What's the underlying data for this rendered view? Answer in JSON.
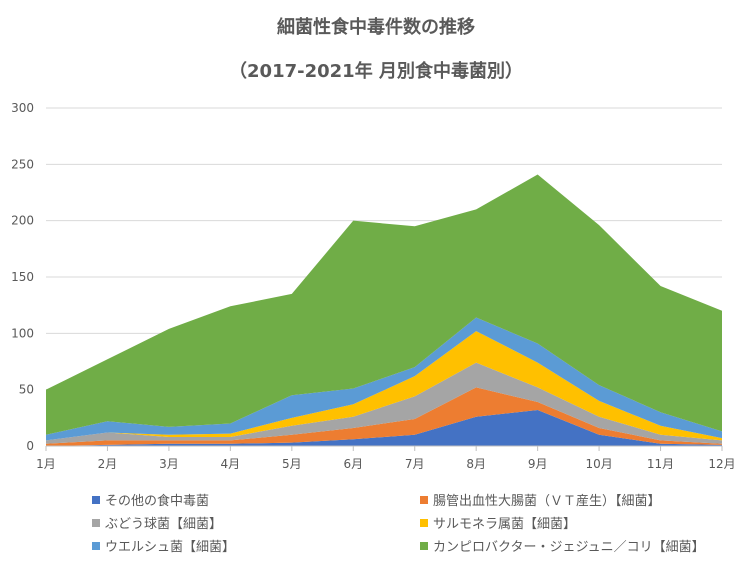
{
  "chart_data": {
    "type": "area",
    "stacked": true,
    "title": "細菌性食中毒件数の推移",
    "subtitle": "（2017-2021年 月別食中毒菌別）",
    "categories": [
      "1月",
      "2月",
      "3月",
      "4月",
      "5月",
      "6月",
      "7月",
      "8月",
      "9月",
      "10月",
      "11月",
      "12月"
    ],
    "ylim": [
      0,
      300
    ],
    "yticks": [
      0,
      50,
      100,
      150,
      200,
      250,
      300
    ],
    "grid": true,
    "legend_position": "bottom",
    "series": [
      {
        "name": "その他の食中毒菌",
        "color": "#4472C4",
        "values": [
          0,
          1,
          2,
          2,
          3,
          6,
          10,
          26,
          32,
          10,
          2,
          1
        ]
      },
      {
        "name": "腸管出血性大腸菌（ＶＴ産生）【細菌】",
        "color": "#ED7D31",
        "values": [
          2,
          4,
          3,
          3,
          7,
          10,
          14,
          26,
          7,
          6,
          3,
          1
        ]
      },
      {
        "name": "ぶどう球菌【細菌】",
        "color": "#A5A5A5",
        "values": [
          3,
          7,
          3,
          3,
          8,
          10,
          20,
          22,
          13,
          10,
          5,
          3
        ]
      },
      {
        "name": "サルモネラ属菌【細菌】",
        "color": "#FFC000",
        "values": [
          0,
          0,
          2,
          3,
          7,
          11,
          18,
          28,
          22,
          14,
          8,
          2
        ]
      },
      {
        "name": "ウエルシュ菌【細菌】",
        "color": "#5B9BD5",
        "values": [
          5,
          10,
          7,
          9,
          20,
          14,
          8,
          12,
          17,
          14,
          12,
          6
        ]
      },
      {
        "name": "カンピロバクター・ジェジュニ／コリ【細菌】",
        "color": "#70AD47",
        "values": [
          40,
          55,
          87,
          104,
          90,
          149,
          125,
          96,
          150,
          142,
          112,
          107
        ]
      }
    ]
  }
}
